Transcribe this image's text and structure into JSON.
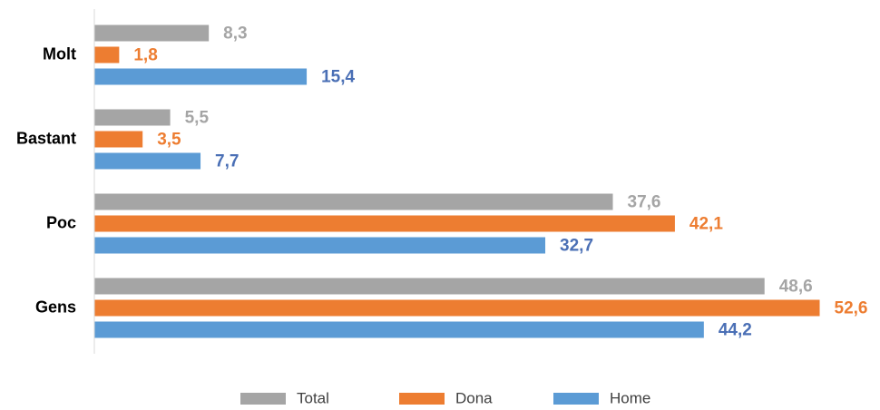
{
  "chart_data": {
    "type": "bar",
    "orientation": "horizontal",
    "categories": [
      "Molt",
      "Bastant",
      "Poc",
      "Gens"
    ],
    "series": [
      {
        "name": "Total",
        "color": "#a5a5a5",
        "label_color": "#a5a5a5",
        "values": [
          8.3,
          5.5,
          37.6,
          48.6
        ],
        "value_labels": [
          "8,3",
          "5,5",
          "37,6",
          "48,6"
        ]
      },
      {
        "name": "Dona",
        "color": "#ed7d31",
        "label_color": "#ed7d31",
        "values": [
          1.8,
          3.5,
          42.1,
          52.6
        ],
        "value_labels": [
          "1,8",
          "3,5",
          "42,1",
          "52,6"
        ]
      },
      {
        "name": "Home",
        "color": "#5b9bd5",
        "label_color": "#4a6fb5",
        "values": [
          15.4,
          7.7,
          32.7,
          44.2
        ],
        "value_labels": [
          "15,4",
          "7,7",
          "32,7",
          "44,2"
        ]
      }
    ],
    "xlim": [
      0,
      55
    ],
    "legend": "bottom"
  }
}
